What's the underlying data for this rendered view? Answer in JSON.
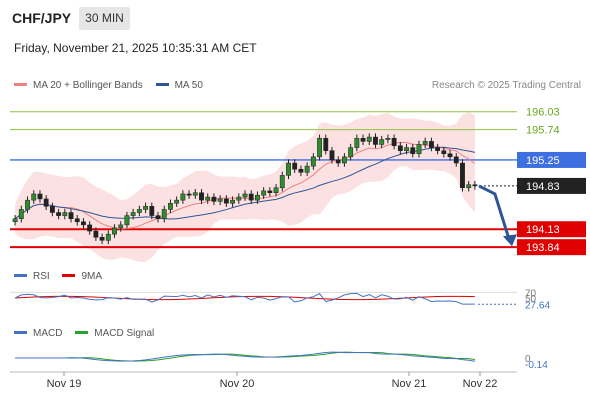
{
  "header": {
    "symbol": "CHF/JPY",
    "timeframe": "30 MIN",
    "datetime": "Friday, November 21, 2025 10:35:31 AM CET"
  },
  "legend": {
    "ma20": {
      "label": "MA 20 + Bollinger Bands",
      "color": "#f08080"
    },
    "ma50": {
      "label": "MA 50",
      "color": "#2f5597"
    },
    "credit": "Research © 2025 Trading Central"
  },
  "price_levels": [
    {
      "value": "196.03",
      "kind": "resistance-green",
      "color": "#8cc63f"
    },
    {
      "value": "195.74",
      "kind": "resistance-green",
      "color": "#8cc63f"
    },
    {
      "value": "195.25",
      "kind": "pivot",
      "color": "#3d6fe0"
    },
    {
      "value": "194.83",
      "kind": "last-price",
      "color": "#222222"
    },
    {
      "value": "194.13",
      "kind": "support",
      "color": "#e00000"
    },
    {
      "value": "193.84",
      "kind": "support",
      "color": "#e00000"
    }
  ],
  "rsi": {
    "legend_rsi": "RSI",
    "legend_9ma": "9MA",
    "level_70": "70",
    "level_50": "50",
    "value": "27.64",
    "rsi_color": "#4472c4",
    "ma_color": "#e00000"
  },
  "macd": {
    "legend_macd": "MACD",
    "legend_signal": "MACD Signal",
    "zero": "0",
    "value": "-0.14",
    "macd_color": "#4472c4",
    "signal_color": "#2ca02c"
  },
  "x_axis": {
    "labels": [
      "Nov 19",
      "Nov 20",
      "Nov 21",
      "Nov 22"
    ]
  },
  "chart_data": {
    "type": "candlestick",
    "title": "CHF/JPY",
    "timeframe": "30 MIN",
    "ylim": [
      193.6,
      196.3
    ],
    "close_series": [
      194.3,
      194.45,
      194.6,
      194.7,
      194.62,
      194.5,
      194.4,
      194.35,
      194.4,
      194.3,
      194.25,
      194.2,
      194.1,
      194.0,
      193.95,
      194.05,
      194.15,
      194.2,
      194.35,
      194.4,
      194.45,
      194.5,
      194.35,
      194.3,
      194.45,
      194.55,
      194.6,
      194.7,
      194.68,
      194.72,
      194.6,
      194.65,
      194.58,
      194.62,
      194.55,
      194.6,
      194.65,
      194.7,
      194.6,
      194.68,
      194.75,
      194.72,
      194.8,
      195.0,
      195.2,
      195.1,
      195.05,
      195.15,
      195.3,
      195.6,
      195.4,
      195.25,
      195.2,
      195.3,
      195.45,
      195.6,
      195.55,
      195.62,
      195.5,
      195.58,
      195.6,
      195.48,
      195.4,
      195.45,
      195.35,
      195.5,
      195.55,
      195.45,
      195.4,
      195.35,
      195.3,
      195.2,
      194.8,
      194.85,
      194.83
    ]
  }
}
